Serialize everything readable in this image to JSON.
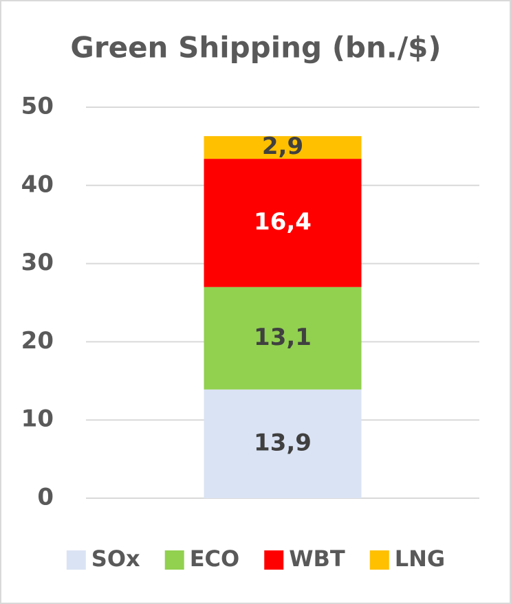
{
  "chart_data": {
    "type": "stacked_bar",
    "title": "Green Shipping (bn./$)",
    "categories": [
      null
    ],
    "series": [
      {
        "name": "SOx",
        "color": "#dae3f3",
        "label_color": "#404040",
        "values": [
          13.9
        ],
        "value_labels": [
          "13,9"
        ]
      },
      {
        "name": "ECO",
        "color": "#92d050",
        "label_color": "#404040",
        "values": [
          13.1
        ],
        "value_labels": [
          "13,1"
        ]
      },
      {
        "name": "WBT",
        "color": "#ff0000",
        "label_color": "#ffffff",
        "values": [
          16.4
        ],
        "value_labels": [
          "16,4"
        ]
      },
      {
        "name": "LNG",
        "color": "#ffc000",
        "label_color": "#404040",
        "values": [
          2.9
        ],
        "value_labels": [
          "2,9"
        ]
      }
    ],
    "ylim": [
      0,
      50
    ],
    "yticks": [
      0,
      10,
      20,
      30,
      40,
      50
    ],
    "grid": true,
    "legend": "bottom"
  }
}
